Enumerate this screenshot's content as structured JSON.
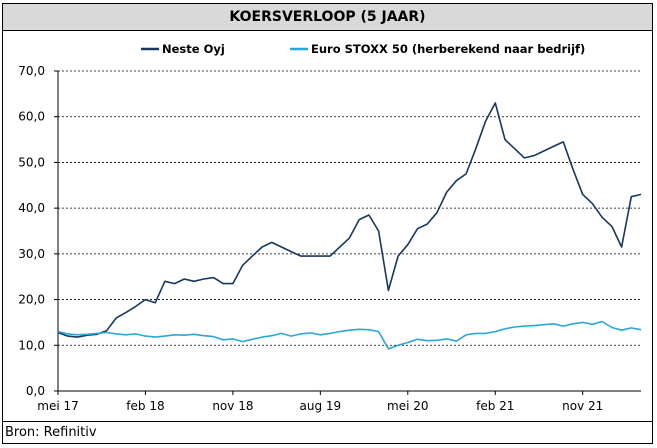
{
  "title": "KOERSVERLOOP (5 JAAR)",
  "source": "Bron: Refinitiv",
  "colors": {
    "neste": "#17375e",
    "stoxx": "#2aa6d8",
    "grid": "#000000",
    "header": "#d9d9d9"
  },
  "chart_data": {
    "type": "line",
    "title": "KOERSVERLOOP (5 JAAR)",
    "xlabel": "",
    "ylabel": "",
    "ylim": [
      0,
      70
    ],
    "yticks": [
      "0,0",
      "10,0",
      "20,0",
      "30,0",
      "40,0",
      "50,0",
      "60,0",
      "70,0"
    ],
    "xticks": [
      "mei 17",
      "feb 18",
      "nov 18",
      "aug 19",
      "mei 20",
      "feb 21",
      "nov 21"
    ],
    "grid": "horizontal dashed",
    "legend": "top",
    "x": [
      "2017-05",
      "2017-06",
      "2017-07",
      "2017-08",
      "2017-09",
      "2017-10",
      "2017-11",
      "2017-12",
      "2018-01",
      "2018-02",
      "2018-03",
      "2018-04",
      "2018-05",
      "2018-06",
      "2018-07",
      "2018-08",
      "2018-09",
      "2018-10",
      "2018-11",
      "2018-12",
      "2019-01",
      "2019-02",
      "2019-03",
      "2019-04",
      "2019-05",
      "2019-06",
      "2019-07",
      "2019-08",
      "2019-09",
      "2019-10",
      "2019-11",
      "2019-12",
      "2020-01",
      "2020-02",
      "2020-03",
      "2020-04",
      "2020-05",
      "2020-06",
      "2020-07",
      "2020-08",
      "2020-09",
      "2020-10",
      "2020-11",
      "2020-12",
      "2021-01",
      "2021-02",
      "2021-03",
      "2021-04",
      "2021-05",
      "2021-06",
      "2021-07",
      "2021-08",
      "2021-09",
      "2021-10",
      "2021-11",
      "2021-12",
      "2022-01",
      "2022-02",
      "2022-03",
      "2022-04",
      "2022-05"
    ],
    "series": [
      {
        "name": "Neste Oyj",
        "values": [
          12.8,
          12.0,
          11.8,
          12.2,
          12.4,
          13.2,
          16.0,
          17.2,
          18.5,
          20.0,
          19.3,
          24.0,
          23.5,
          24.5,
          24.0,
          24.5,
          24.8,
          23.5,
          23.5,
          27.5,
          29.5,
          31.5,
          32.5,
          31.5,
          30.5,
          29.5,
          29.5,
          29.5,
          29.5,
          31.5,
          33.5,
          37.5,
          38.5,
          35.0,
          22.0,
          29.5,
          32.0,
          35.5,
          36.5,
          39.0,
          43.5,
          46.0,
          47.5,
          53.0,
          59.0,
          63.0,
          55.0,
          53.0,
          51.0,
          51.5,
          52.5,
          53.5,
          54.5,
          48.5,
          43.0,
          41.0,
          38.0,
          36.0,
          31.5,
          42.5,
          43.0
        ]
      },
      {
        "name": "Euro STOXX 50 (herberekend naar bedrijf)",
        "values": [
          13.0,
          12.5,
          12.3,
          12.4,
          12.6,
          12.8,
          12.5,
          12.3,
          12.5,
          12.0,
          11.8,
          12.0,
          12.3,
          12.2,
          12.4,
          12.1,
          11.9,
          11.2,
          11.4,
          10.8,
          11.3,
          11.8,
          12.1,
          12.6,
          12.0,
          12.5,
          12.7,
          12.3,
          12.6,
          13.0,
          13.3,
          13.5,
          13.4,
          13.0,
          9.2,
          10.0,
          10.6,
          11.3,
          11.0,
          11.1,
          11.4,
          10.9,
          12.3,
          12.6,
          12.6,
          13.0,
          13.6,
          14.0,
          14.2,
          14.3,
          14.5,
          14.7,
          14.2,
          14.7,
          15.0,
          14.6,
          15.2,
          13.9,
          13.3,
          13.8,
          13.4
        ]
      }
    ]
  }
}
